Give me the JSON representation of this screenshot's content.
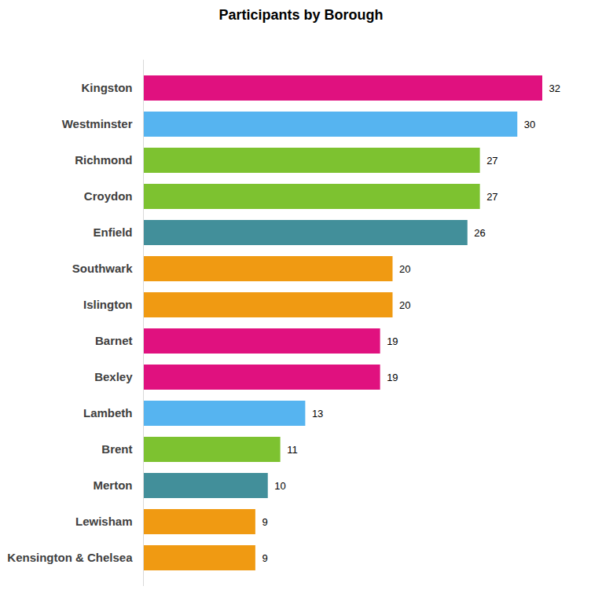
{
  "chart_data": {
    "type": "bar",
    "title": "Participants by Borough",
    "orientation": "horizontal",
    "categories": [
      "Kingston",
      "Westminster",
      "Richmond",
      "Croydon",
      "Enfield",
      "Southwark",
      "Islington",
      "Barnet",
      "Bexley",
      "Lambeth",
      "Brent",
      "Merton",
      "Lewisham",
      "Kensington & Chelsea"
    ],
    "values": [
      32,
      30,
      27,
      27,
      26,
      20,
      20,
      19,
      19,
      13,
      11,
      10,
      9,
      9
    ],
    "colors": [
      "#e0117f",
      "#56b4f0",
      "#7dc230",
      "#7dc230",
      "#428f9a",
      "#f09a12",
      "#f09a12",
      "#e0117f",
      "#e0117f",
      "#56b4f0",
      "#7dc230",
      "#428f9a",
      "#f09a12",
      "#f09a12"
    ],
    "xlim": [
      0,
      32
    ],
    "data_labels": true,
    "tick_labels": "y",
    "grid": false
  }
}
